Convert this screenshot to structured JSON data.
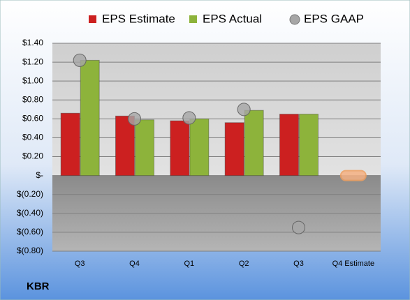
{
  "chart_data": {
    "type": "bar",
    "title": "KBR",
    "categories": [
      "Q3",
      "Q4",
      "Q1",
      "Q2",
      "Q3",
      "Q4 Estimate"
    ],
    "series": [
      {
        "name": "EPS Estimate",
        "type": "bar",
        "color": "#cc2020",
        "values": [
          0.66,
          0.63,
          0.58,
          0.56,
          0.65,
          null
        ]
      },
      {
        "name": "EPS Actual",
        "type": "bar",
        "color": "#8db33b",
        "values": [
          1.22,
          0.59,
          0.6,
          0.69,
          0.65,
          null
        ]
      },
      {
        "name": "EPS GAAP",
        "type": "scatter",
        "color": "#a6a6a6",
        "values": [
          1.22,
          0.6,
          0.61,
          0.7,
          -0.55,
          null
        ]
      }
    ],
    "ylim": [
      -0.8,
      1.4
    ],
    "yticks": [
      {
        "value": 1.4,
        "label": "$1.40"
      },
      {
        "value": 1.2,
        "label": "$1.20"
      },
      {
        "value": 1.0,
        "label": "$1.00"
      },
      {
        "value": 0.8,
        "label": "$0.80"
      },
      {
        "value": 0.6,
        "label": "$0.60"
      },
      {
        "value": 0.4,
        "label": "$0.40"
      },
      {
        "value": 0.2,
        "label": "$0.20"
      },
      {
        "value": 0,
        "label": "$-"
      },
      {
        "value": -0.2,
        "label": "$(0.20)"
      },
      {
        "value": -0.4,
        "label": "$(0.40)"
      },
      {
        "value": -0.6,
        "label": "$(0.60)"
      },
      {
        "value": -0.8,
        "label": "$(0.80)"
      }
    ],
    "grid": true,
    "legend": "top"
  }
}
